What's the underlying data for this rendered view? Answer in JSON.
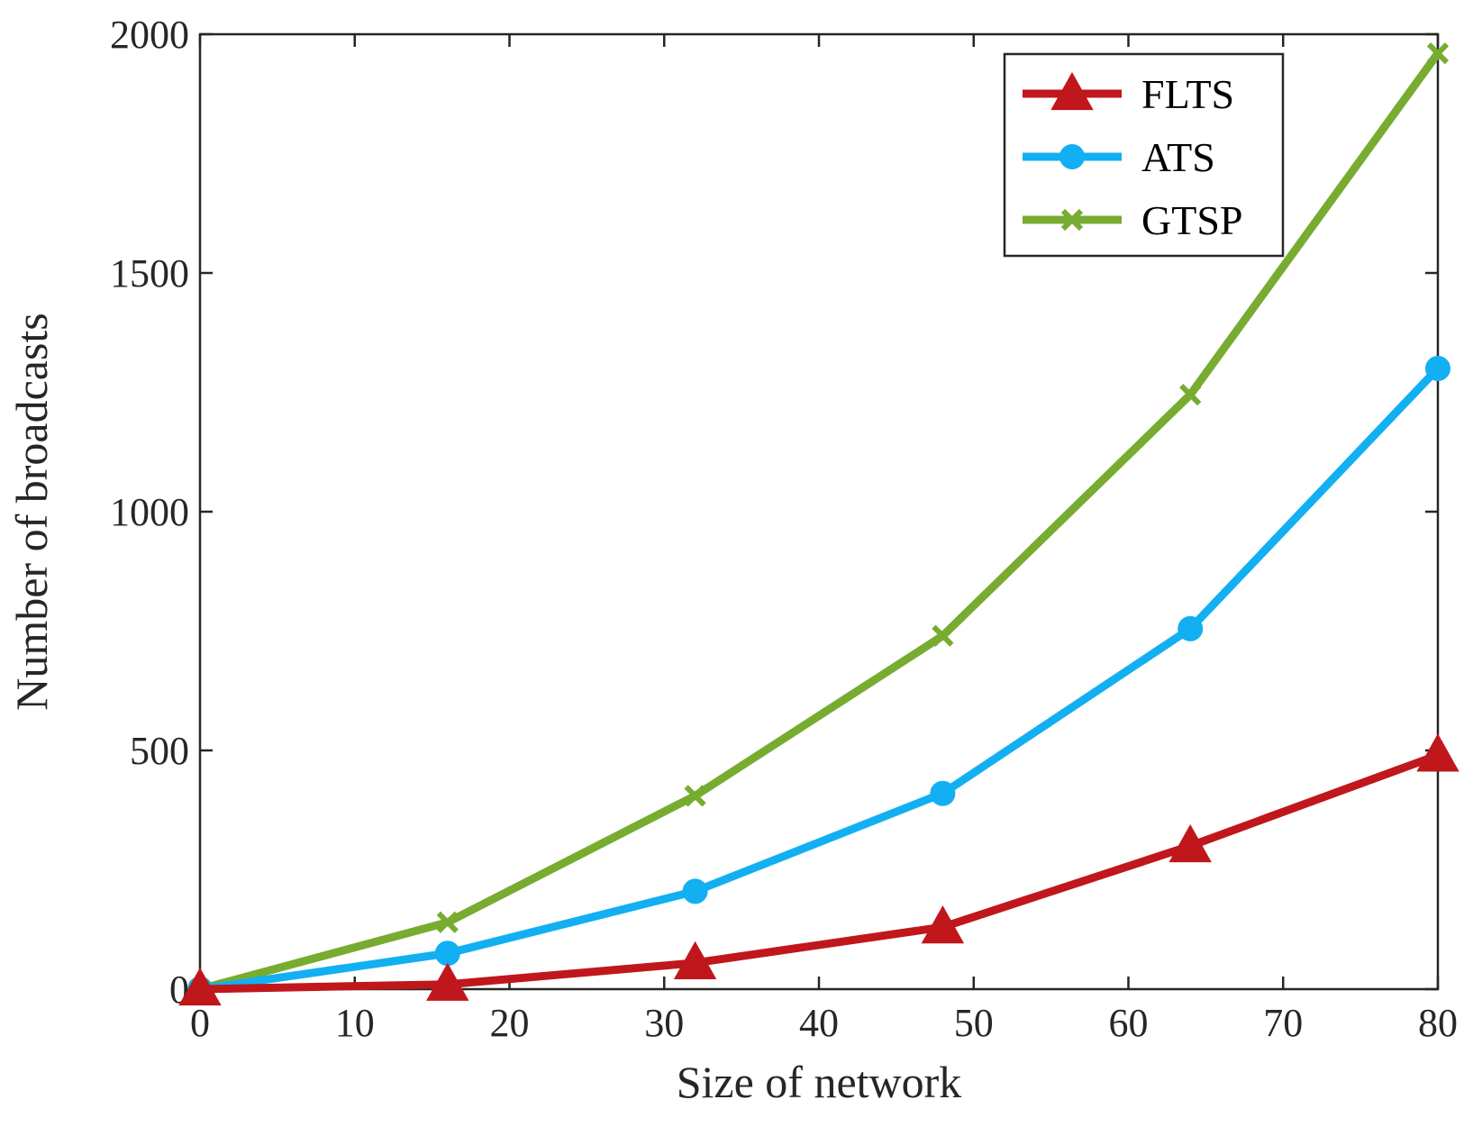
{
  "chart_data": {
    "type": "line",
    "title": "",
    "xlabel": "Size of network",
    "ylabel": "Number of broadcasts",
    "x": [
      0,
      16,
      32,
      48,
      64,
      80
    ],
    "xlim": [
      0,
      80
    ],
    "ylim": [
      0,
      2000
    ],
    "xticks": [
      "0",
      "10",
      "20",
      "30",
      "40",
      "50",
      "60",
      "70",
      "80"
    ],
    "yticks": [
      "0",
      "500",
      "1000",
      "1500",
      "2000"
    ],
    "grid": false,
    "legend_position": "top-right",
    "series": [
      {
        "name": "FLTS",
        "marker": "triangle",
        "color": "#c0171c",
        "values": [
          0,
          10,
          55,
          130,
          300,
          490
        ]
      },
      {
        "name": "ATS",
        "marker": "circle",
        "color": "#12b0f2",
        "values": [
          0,
          75,
          205,
          410,
          755,
          1300
        ]
      },
      {
        "name": "GTSP",
        "marker": "x",
        "color": "#77ac30",
        "values": [
          0,
          140,
          405,
          740,
          1245,
          1960
        ]
      }
    ]
  }
}
